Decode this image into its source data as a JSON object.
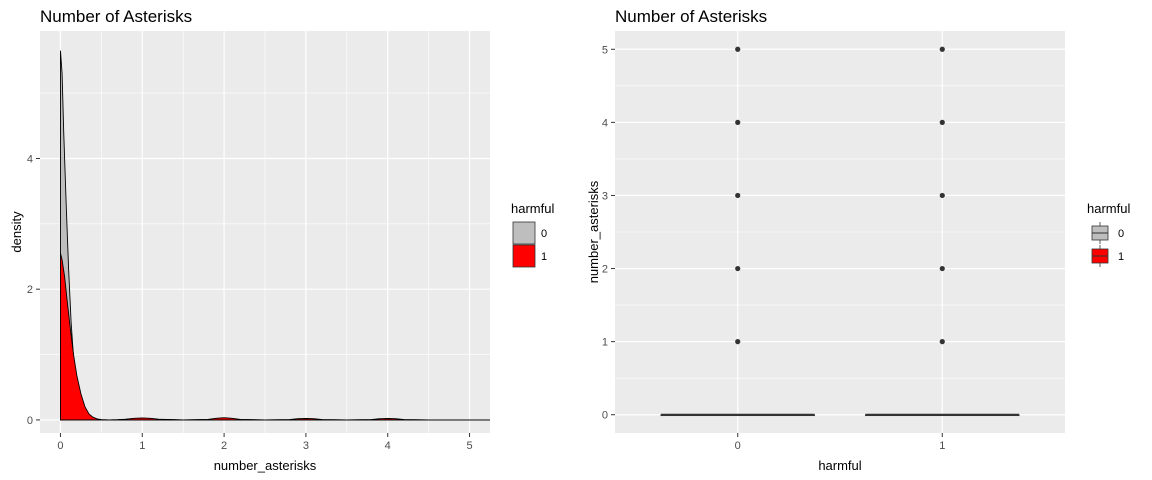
{
  "chart_data": [
    {
      "type": "area",
      "title": "Number of Asterisks",
      "xlabel": "number_asterisks",
      "ylabel": "density",
      "xlim": [
        -0.25,
        5.25
      ],
      "ylim": [
        -0.2,
        5.95
      ],
      "x_ticks": [
        "0",
        "1",
        "2",
        "3",
        "4",
        "5"
      ],
      "y_ticks": [
        "0",
        "2",
        "4"
      ],
      "x_tick_values": [
        0,
        1,
        2,
        3,
        4,
        5
      ],
      "y_tick_values": [
        0,
        2,
        4
      ],
      "legend": {
        "title": "harmful",
        "position": "right"
      },
      "series": [
        {
          "name": "0",
          "color": "#bebebe",
          "x": [
            0,
            0.02,
            0.04,
            0.07,
            0.1,
            0.13,
            0.16,
            0.2,
            0.25,
            0.3,
            0.35,
            0.4,
            0.45,
            0.5,
            0.6,
            0.7,
            0.8,
            0.9,
            1.0,
            1.1,
            1.2,
            1.5,
            1.8,
            1.9,
            2.0,
            2.1,
            2.2,
            2.5,
            2.8,
            2.9,
            3.0,
            3.1,
            3.2,
            3.5,
            3.8,
            3.9,
            4.0,
            4.1,
            4.2,
            4.5,
            5.0,
            5.25
          ],
          "y": [
            5.65,
            5.3,
            4.4,
            3.3,
            2.3,
            1.5,
            0.95,
            0.5,
            0.22,
            0.09,
            0.04,
            0.015,
            0.006,
            0.002,
            0.0,
            0.003,
            0.01,
            0.02,
            0.025,
            0.02,
            0.01,
            0.0,
            0.005,
            0.015,
            0.02,
            0.015,
            0.005,
            0.0,
            0.004,
            0.012,
            0.015,
            0.012,
            0.004,
            0.0,
            0.004,
            0.012,
            0.015,
            0.012,
            0.004,
            0.0,
            0.0,
            0.0
          ]
        },
        {
          "name": "1",
          "color": "#ff0000",
          "x": [
            0,
            0.02,
            0.05,
            0.08,
            0.12,
            0.16,
            0.2,
            0.25,
            0.3,
            0.35,
            0.4,
            0.45,
            0.5,
            0.6,
            0.7,
            0.8,
            0.9,
            1.0,
            1.1,
            1.2,
            1.5,
            1.8,
            1.9,
            2.0,
            2.1,
            2.2,
            2.5,
            2.8,
            2.9,
            3.0,
            3.1,
            3.2,
            3.5,
            3.8,
            3.9,
            4.0,
            4.1,
            4.2,
            4.5,
            5.0,
            5.25
          ],
          "y": [
            2.55,
            2.45,
            2.2,
            1.85,
            1.4,
            1.0,
            0.68,
            0.4,
            0.2,
            0.09,
            0.04,
            0.015,
            0.005,
            0.0,
            0.004,
            0.012,
            0.025,
            0.03,
            0.025,
            0.012,
            0.0,
            0.008,
            0.025,
            0.035,
            0.025,
            0.008,
            0.0,
            0.006,
            0.018,
            0.022,
            0.018,
            0.006,
            0.0,
            0.006,
            0.018,
            0.022,
            0.018,
            0.006,
            0.0,
            0.0,
            0.0
          ]
        }
      ]
    },
    {
      "type": "box",
      "title": "Number of Asterisks",
      "xlabel": "harmful",
      "ylabel": "number_asterisks",
      "categories": [
        "0",
        "1"
      ],
      "ylim": [
        -0.25,
        5.25
      ],
      "y_ticks": [
        "0",
        "1",
        "2",
        "3",
        "4",
        "5"
      ],
      "y_tick_values": [
        0,
        1,
        2,
        3,
        4,
        5
      ],
      "legend": {
        "title": "harmful",
        "position": "right"
      },
      "series": [
        {
          "name": "0",
          "color": "#bebebe",
          "median": 0,
          "q1": 0,
          "q3": 0,
          "whisker_low": 0,
          "whisker_high": 0,
          "outliers": [
            1,
            2,
            3,
            4,
            5
          ]
        },
        {
          "name": "1",
          "color": "#ff0000",
          "median": 0,
          "q1": 0,
          "q3": 0,
          "whisker_low": 0,
          "whisker_high": 0,
          "outliers": [
            1,
            2,
            3,
            4,
            5
          ]
        }
      ]
    }
  ]
}
